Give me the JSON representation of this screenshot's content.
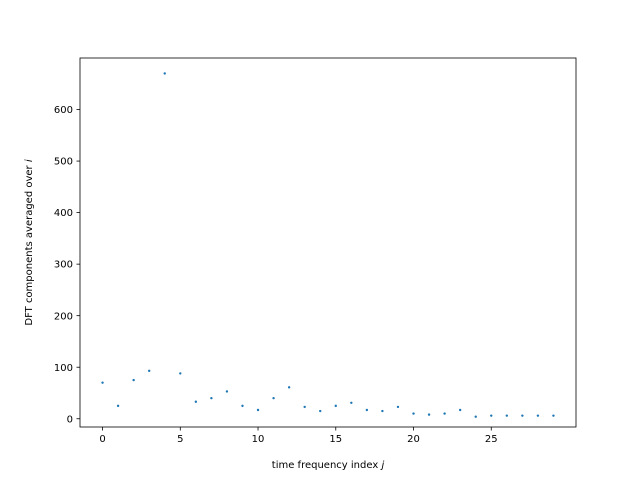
{
  "chart_data": {
    "type": "scatter",
    "title": "",
    "xlabel": "time frequency index",
    "xlabel_var": "j",
    "ylabel": "DFT components averaged over",
    "ylabel_var": "i",
    "xlim": [
      -1.45,
      30.45
    ],
    "ylim": [
      -16,
      700
    ],
    "xticks": [
      0,
      5,
      10,
      15,
      20,
      25
    ],
    "yticks": [
      0,
      100,
      200,
      300,
      400,
      500,
      600
    ],
    "grid": false,
    "legend": "none",
    "marker_color": "#1f77b4",
    "x": [
      0,
      1,
      2,
      3,
      4,
      5,
      6,
      7,
      8,
      9,
      10,
      11,
      12,
      13,
      14,
      15,
      16,
      17,
      18,
      19,
      20,
      21,
      22,
      23,
      24,
      25,
      26,
      27,
      28,
      29
    ],
    "y": [
      70,
      25,
      75,
      93,
      670,
      88,
      33,
      40,
      53,
      25,
      17,
      40,
      61,
      23,
      15,
      25,
      31,
      17,
      15,
      23,
      10,
      8,
      10,
      17,
      4,
      6,
      6,
      6,
      6,
      6
    ]
  }
}
